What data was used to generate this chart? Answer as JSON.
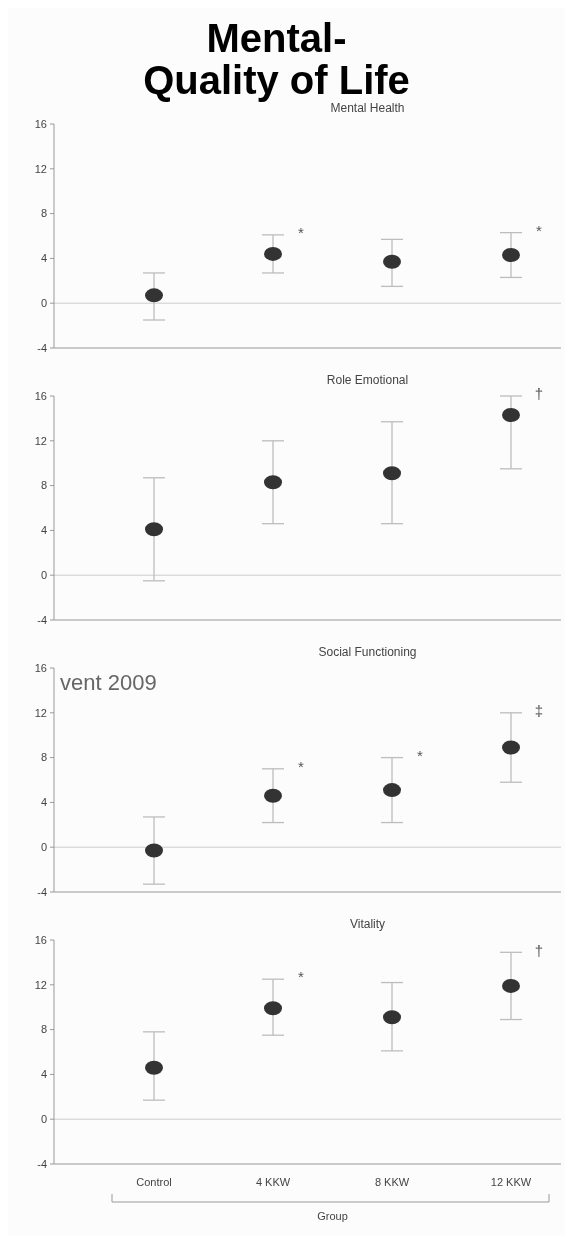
{
  "chart_data": [
    {
      "type": "scatter",
      "title": "Mental Health",
      "categories": [
        "Control",
        "4 KKW",
        "8 KKW",
        "12 KKW"
      ],
      "values": [
        0.7,
        4.4,
        3.7,
        4.3
      ],
      "errors": [
        [
          -1.5,
          2.7
        ],
        [
          2.7,
          6.1
        ],
        [
          1.5,
          5.7
        ],
        [
          2.3,
          6.3
        ]
      ],
      "color": "#333333",
      "marker": "circle",
      "ylim": [
        -4,
        16
      ],
      "yticks": [
        -4,
        0,
        4,
        8,
        12,
        16
      ],
      "tick_labels": "y",
      "ref_lines": [
        {
          "axis": "y",
          "value": 0
        }
      ],
      "annotations": [
        "Mental-Quality of Life",
        {
          "text": "*",
          "x": "4 KKW",
          "y": 6.1
        },
        {
          "text": "*",
          "x": "12 KKW",
          "y": 6.3
        }
      ]
    },
    {
      "type": "scatter",
      "title": "Role Emotional",
      "categories": [
        "Control",
        "4 KKW",
        "8 KKW",
        "12 KKW"
      ],
      "values": [
        4.1,
        8.3,
        9.1,
        14.3
      ],
      "errors": [
        [
          -0.5,
          8.7
        ],
        [
          4.6,
          12
        ],
        [
          4.6,
          13.7
        ],
        [
          9.5,
          16
        ]
      ],
      "color": "#333333",
      "marker": "circle",
      "ylim": [
        -4,
        16
      ],
      "yticks": [
        -4,
        0,
        4,
        8,
        12,
        16
      ],
      "tick_labels": "y",
      "ref_lines": [
        {
          "axis": "y",
          "value": 0
        }
      ],
      "annotations": [
        {
          "text": "†",
          "x": "12 KKW",
          "y": 16
        }
      ]
    },
    {
      "type": "scatter",
      "title": "Social Functioning",
      "categories": [
        "Control",
        "4 KKW",
        "8 KKW",
        "12 KKW"
      ],
      "values": [
        -0.3,
        4.6,
        5.1,
        8.9
      ],
      "errors": [
        [
          -3.3,
          2.7
        ],
        [
          2.2,
          7
        ],
        [
          2.2,
          8
        ],
        [
          5.8,
          12
        ]
      ],
      "color": "#333333",
      "marker": "circle",
      "ylim": [
        -4,
        16
      ],
      "yticks": [
        -4,
        0,
        4,
        8,
        12,
        16
      ],
      "tick_labels": "y",
      "ref_lines": [
        {
          "axis": "y",
          "value": 0
        }
      ],
      "annotations": [
        "vent 2009",
        {
          "text": "*",
          "x": "4 KKW",
          "y": 7
        },
        {
          "text": "*",
          "x": "8 KKW",
          "y": 8
        },
        {
          "text": "‡",
          "x": "12 KKW",
          "y": 12
        }
      ]
    },
    {
      "type": "scatter",
      "title": "Vitality",
      "categories": [
        "Control",
        "4 KKW",
        "8 KKW",
        "12 KKW"
      ],
      "values": [
        4.6,
        9.9,
        9.1,
        11.9
      ],
      "errors": [
        [
          1.7,
          7.8
        ],
        [
          7.5,
          12.5
        ],
        [
          6.1,
          12.2
        ],
        [
          8.9,
          14.9
        ]
      ],
      "color": "#333333",
      "marker": "circle",
      "ylim": [
        -4,
        16
      ],
      "yticks": [
        -4,
        0,
        4,
        8,
        12,
        16
      ],
      "xlabel": "Group",
      "ref_lines": [
        {
          "axis": "y",
          "value": 0
        }
      ],
      "annotations": [
        {
          "text": "*",
          "x": "4 KKW",
          "y": 12.5
        },
        {
          "text": "†",
          "x": "12 KKW",
          "y": 14.9
        }
      ]
    }
  ]
}
